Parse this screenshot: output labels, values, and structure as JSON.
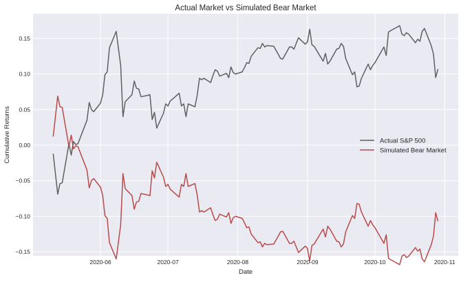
{
  "chart_data": {
    "type": "line",
    "title": "Actual Market vs Simulated Bear Market",
    "xlabel": "Date",
    "ylabel": "Cumulative Returns",
    "ylim": [
      -0.17,
      0.18
    ],
    "xlim": [
      "2020-05-01",
      "2020-11-04"
    ],
    "grid": true,
    "legend_placement": "center-right",
    "x_ticks": [
      "2020-06",
      "2020-07",
      "2020-08",
      "2020-09",
      "2020-10",
      "2020-11"
    ],
    "y_ticks": [
      "0.15",
      "0.10",
      "0.05",
      "0.00",
      "−0.05",
      "−0.10",
      "−0.15"
    ],
    "y_tick_values": [
      0.15,
      0.1,
      0.05,
      0.0,
      -0.05,
      -0.1,
      -0.15
    ],
    "x": [
      "2020-05-11",
      "2020-05-13",
      "2020-05-14",
      "2020-05-15",
      "2020-05-18",
      "2020-05-19",
      "2020-05-20",
      "2020-05-21",
      "2020-05-22",
      "2020-05-26",
      "2020-05-27",
      "2020-05-28",
      "2020-05-29",
      "2020-06-01",
      "2020-06-02",
      "2020-06-03",
      "2020-06-04",
      "2020-06-05",
      "2020-06-08",
      "2020-06-10",
      "2020-06-11",
      "2020-06-12",
      "2020-06-15",
      "2020-06-16",
      "2020-06-17",
      "2020-06-18",
      "2020-06-19",
      "2020-06-22",
      "2020-06-23",
      "2020-06-24",
      "2020-06-25",
      "2020-06-26",
      "2020-06-29",
      "2020-06-30",
      "2020-07-01",
      "2020-07-02",
      "2020-07-06",
      "2020-07-07",
      "2020-07-08",
      "2020-07-09",
      "2020-07-10",
      "2020-07-13",
      "2020-07-14",
      "2020-07-15",
      "2020-07-16",
      "2020-07-17",
      "2020-07-20",
      "2020-07-21",
      "2020-07-22",
      "2020-07-23",
      "2020-07-24",
      "2020-07-27",
      "2020-07-28",
      "2020-07-29",
      "2020-07-30",
      "2020-07-31",
      "2020-08-03",
      "2020-08-04",
      "2020-08-05",
      "2020-08-06",
      "2020-08-07",
      "2020-08-10",
      "2020-08-11",
      "2020-08-12",
      "2020-08-13",
      "2020-08-14",
      "2020-08-17",
      "2020-08-19",
      "2020-08-20",
      "2020-08-21",
      "2020-08-24",
      "2020-08-25",
      "2020-08-26",
      "2020-08-27",
      "2020-08-28",
      "2020-08-31",
      "2020-09-01",
      "2020-09-02",
      "2020-09-03",
      "2020-09-04",
      "2020-09-08",
      "2020-09-09",
      "2020-09-10",
      "2020-09-11",
      "2020-09-14",
      "2020-09-15",
      "2020-09-16",
      "2020-09-17",
      "2020-09-18",
      "2020-09-21",
      "2020-09-22",
      "2020-09-23",
      "2020-09-24",
      "2020-09-25",
      "2020-09-28",
      "2020-09-29",
      "2020-09-30",
      "2020-10-01",
      "2020-10-05",
      "2020-10-06",
      "2020-10-07",
      "2020-10-08",
      "2020-10-12",
      "2020-10-13",
      "2020-10-14",
      "2020-10-15",
      "2020-10-16",
      "2020-10-19",
      "2020-10-20",
      "2020-10-21",
      "2020-10-22",
      "2020-10-23",
      "2020-10-26",
      "2020-10-27",
      "2020-10-28",
      "2020-10-29"
    ],
    "series": [
      {
        "name": "Actual S&P 500",
        "color": "#5f5f5f",
        "values": [
          -0.012,
          -0.069,
          -0.054,
          -0.053,
          0.002,
          -0.014,
          0.005,
          0.001,
          0.002,
          0.035,
          0.06,
          0.05,
          0.047,
          0.059,
          0.071,
          0.099,
          0.103,
          0.137,
          0.16,
          0.112,
          0.04,
          0.061,
          0.071,
          0.09,
          0.08,
          0.079,
          0.068,
          0.07,
          0.071,
          0.036,
          0.046,
          0.024,
          0.045,
          0.058,
          0.055,
          0.062,
          0.073,
          0.055,
          0.058,
          0.04,
          0.058,
          0.054,
          0.07,
          0.094,
          0.092,
          0.094,
          0.088,
          0.098,
          0.106,
          0.104,
          0.097,
          0.101,
          0.095,
          0.11,
          0.102,
          0.1,
          0.103,
          0.109,
          0.116,
          0.115,
          0.125,
          0.137,
          0.136,
          0.143,
          0.138,
          0.14,
          0.139,
          0.128,
          0.122,
          0.121,
          0.138,
          0.138,
          0.135,
          0.143,
          0.151,
          0.142,
          0.145,
          0.163,
          0.141,
          0.139,
          0.118,
          0.129,
          0.114,
          0.118,
          0.135,
          0.136,
          0.143,
          0.139,
          0.122,
          0.099,
          0.103,
          0.082,
          0.083,
          0.094,
          0.114,
          0.106,
          0.112,
          0.116,
          0.138,
          0.126,
          0.159,
          0.161,
          0.168,
          0.156,
          0.154,
          0.158,
          0.156,
          0.144,
          0.149,
          0.146,
          0.16,
          0.164,
          0.14,
          0.128,
          0.095,
          0.107
        ]
      },
      {
        "name": "Simulated Bear Market",
        "color": "#b84a4a",
        "values": [
          0.012,
          0.069,
          0.054,
          0.053,
          -0.002,
          0.014,
          -0.005,
          -0.001,
          -0.002,
          -0.035,
          -0.06,
          -0.05,
          -0.047,
          -0.059,
          -0.071,
          -0.099,
          -0.103,
          -0.137,
          -0.16,
          -0.112,
          -0.04,
          -0.061,
          -0.071,
          -0.09,
          -0.08,
          -0.079,
          -0.068,
          -0.07,
          -0.071,
          -0.036,
          -0.046,
          -0.024,
          -0.045,
          -0.058,
          -0.055,
          -0.062,
          -0.073,
          -0.055,
          -0.058,
          -0.04,
          -0.058,
          -0.054,
          -0.07,
          -0.094,
          -0.092,
          -0.094,
          -0.088,
          -0.098,
          -0.106,
          -0.104,
          -0.097,
          -0.101,
          -0.095,
          -0.11,
          -0.102,
          -0.1,
          -0.103,
          -0.109,
          -0.116,
          -0.115,
          -0.125,
          -0.137,
          -0.136,
          -0.143,
          -0.138,
          -0.14,
          -0.139,
          -0.128,
          -0.122,
          -0.121,
          -0.138,
          -0.138,
          -0.135,
          -0.143,
          -0.151,
          -0.142,
          -0.145,
          -0.163,
          -0.141,
          -0.139,
          -0.118,
          -0.129,
          -0.114,
          -0.118,
          -0.135,
          -0.136,
          -0.143,
          -0.139,
          -0.122,
          -0.099,
          -0.103,
          -0.082,
          -0.083,
          -0.094,
          -0.114,
          -0.106,
          -0.112,
          -0.116,
          -0.138,
          -0.126,
          -0.159,
          -0.161,
          -0.168,
          -0.156,
          -0.154,
          -0.158,
          -0.156,
          -0.144,
          -0.149,
          -0.146,
          -0.16,
          -0.164,
          -0.14,
          -0.128,
          -0.095,
          -0.107
        ]
      }
    ],
    "background_color": "#eaeaf2",
    "grid_color": "#ffffff"
  }
}
